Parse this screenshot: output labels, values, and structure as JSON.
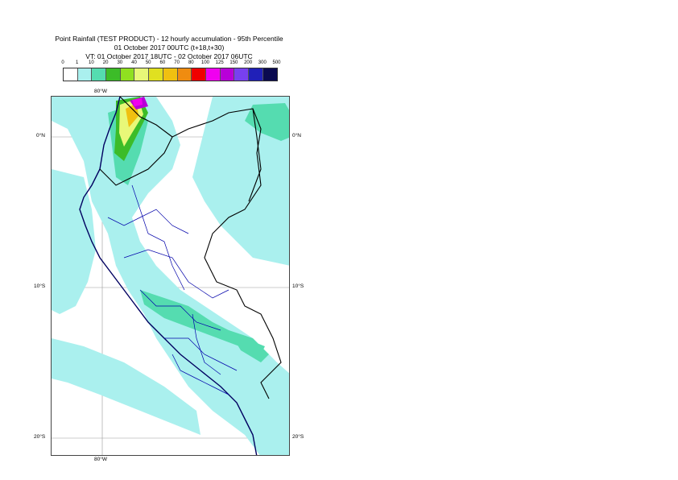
{
  "title": {
    "line1": "Point Rainfall (TEST PRODUCT) - 12 hourly accumulation - 95th Percentile",
    "line2": "01 October 2017 00UTC (t+18,t+30)",
    "line3": "VT: 01 October 2017 18UTC - 02 October 2017 06UTC"
  },
  "legend": {
    "thresholds": [
      "0",
      "1",
      "10",
      "20",
      "30",
      "40",
      "50",
      "60",
      "70",
      "80",
      "100",
      "125",
      "150",
      "200",
      "300",
      "500"
    ],
    "colors": [
      "#ffffff",
      "#aaf0ee",
      "#55dcb0",
      "#3cbc28",
      "#90e020",
      "#e8f878",
      "#e0e020",
      "#f0c010",
      "#f08c10",
      "#f00000",
      "#f000f0",
      "#b800d8",
      "#7840f0",
      "#2020b8",
      "#0a0a50"
    ]
  },
  "axes": {
    "lon_top": "80°W",
    "lon_bottom": "80°W",
    "lat_right": [
      "0°N",
      "10°S",
      "20°S"
    ],
    "lat_left": [
      "0°N",
      "10°S",
      "20°S"
    ]
  },
  "map": {
    "colors": {
      "light": "#aaf0ee",
      "mid": "#55dcb0",
      "green": "#3cbc28",
      "yellowgreen": "#90e020",
      "yellow": "#e8f878",
      "orange": "#f0c010",
      "magenta": "#f000f0",
      "purple": "#b800d8",
      "country_border": "#000000",
      "region_border": "#0000aa",
      "coast": "#000060"
    }
  }
}
